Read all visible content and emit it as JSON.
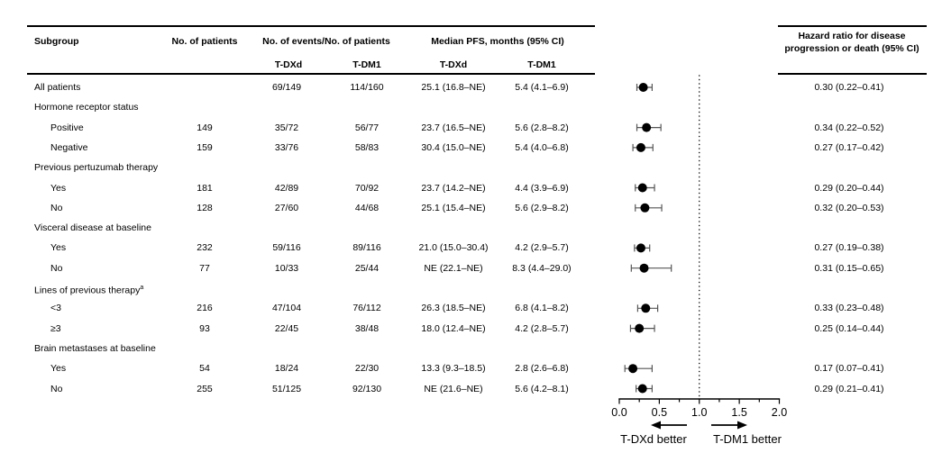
{
  "figure": {
    "headers": {
      "subgroup": "Subgroup",
      "n_patients": "No. of patients",
      "events": "No. of events/No. of patients",
      "pfs": "Median PFS, months (95% CI)",
      "arm1": "T-DXd",
      "arm2": "T-DM1",
      "hazard": "Hazard ratio for disease progression or death (95% CI)"
    }
  },
  "table": {
    "rows": [
      {
        "label": "All patients",
        "indent": 0,
        "n": "",
        "ev_tdxd": "69/149",
        "ev_tdm1": "114/160",
        "pfs_tdxd": "25.1 (16.8–NE)",
        "pfs_tdm1": "5.4 (4.1–6.9)",
        "hr_text": "0.30 (0.22–0.41)",
        "hr": 0.3,
        "lo": 0.22,
        "hi": 0.41
      },
      {
        "label": "Hormone receptor status",
        "indent": 0,
        "group": true
      },
      {
        "label": "Positive",
        "indent": 1,
        "n": "149",
        "ev_tdxd": "35/72",
        "ev_tdm1": "56/77",
        "pfs_tdxd": "23.7 (16.5–NE)",
        "pfs_tdm1": "5.6 (2.8–8.2)",
        "hr_text": "0.34 (0.22–0.52)",
        "hr": 0.34,
        "lo": 0.22,
        "hi": 0.52
      },
      {
        "label": "Negative",
        "indent": 1,
        "n": "159",
        "ev_tdxd": "33/76",
        "ev_tdm1": "58/83",
        "pfs_tdxd": "30.4 (15.0–NE)",
        "pfs_tdm1": "5.4 (4.0–6.8)",
        "hr_text": "0.27 (0.17–0.42)",
        "hr": 0.27,
        "lo": 0.17,
        "hi": 0.42
      },
      {
        "label": "Previous pertuzumab therapy",
        "indent": 0,
        "group": true
      },
      {
        "label": "Yes",
        "indent": 1,
        "n": "181",
        "ev_tdxd": "42/89",
        "ev_tdm1": "70/92",
        "pfs_tdxd": "23.7 (14.2–NE)",
        "pfs_tdm1": "4.4 (3.9–6.9)",
        "hr_text": "0.29 (0.20–0.44)",
        "hr": 0.29,
        "lo": 0.2,
        "hi": 0.44
      },
      {
        "label": "No",
        "indent": 1,
        "n": "128",
        "ev_tdxd": "27/60",
        "ev_tdm1": "44/68",
        "pfs_tdxd": "25.1 (15.4–NE)",
        "pfs_tdm1": "5.6 (2.9–8.2)",
        "hr_text": "0.32 (0.20–0.53)",
        "hr": 0.32,
        "lo": 0.2,
        "hi": 0.53
      },
      {
        "label": "Visceral disease at baseline",
        "indent": 0,
        "group": true
      },
      {
        "label": "Yes",
        "indent": 1,
        "n": "232",
        "ev_tdxd": "59/116",
        "ev_tdm1": "89/116",
        "pfs_tdxd": "21.0 (15.0–30.4)",
        "pfs_tdm1": "4.2 (2.9–5.7)",
        "hr_text": "0.27 (0.19–0.38)",
        "hr": 0.27,
        "lo": 0.19,
        "hi": 0.38
      },
      {
        "label": "No",
        "indent": 1,
        "n": "77",
        "ev_tdxd": "10/33",
        "ev_tdm1": "25/44",
        "pfs_tdxd": "NE (22.1–NE)",
        "pfs_tdm1": "8.3 (4.4–29.0)",
        "hr_text": "0.31 (0.15–0.65)",
        "hr": 0.31,
        "lo": 0.15,
        "hi": 0.65
      },
      {
        "label": "Lines of previous therapy",
        "sup": "a",
        "indent": 0,
        "group": true
      },
      {
        "label": "<3",
        "indent": 1,
        "n": "216",
        "ev_tdxd": "47/104",
        "ev_tdm1": "76/112",
        "pfs_tdxd": "26.3 (18.5–NE)",
        "pfs_tdm1": "6.8 (4.1–8.2)",
        "hr_text": "0.33 (0.23–0.48)",
        "hr": 0.33,
        "lo": 0.23,
        "hi": 0.48
      },
      {
        "label": "≥3",
        "indent": 1,
        "n": "93",
        "ev_tdxd": "22/45",
        "ev_tdm1": "38/48",
        "pfs_tdxd": "18.0 (12.4–NE)",
        "pfs_tdm1": "4.2 (2.8–5.7)",
        "hr_text": "0.25 (0.14–0.44)",
        "hr": 0.25,
        "lo": 0.14,
        "hi": 0.44
      },
      {
        "label": "Brain metastases at baseline",
        "indent": 0,
        "group": true
      },
      {
        "label": "Yes",
        "indent": 1,
        "n": "54",
        "ev_tdxd": "18/24",
        "ev_tdm1": "22/30",
        "pfs_tdxd": "13.3 (9.3–18.5)",
        "pfs_tdm1": "2.8 (2.6–6.8)",
        "hr_text": "0.17 (0.07–0.41)",
        "hr": 0.17,
        "lo": 0.07,
        "hi": 0.41
      },
      {
        "label": "No",
        "indent": 1,
        "n": "255",
        "ev_tdxd": "51/125",
        "ev_tdm1": "92/130",
        "pfs_tdxd": "NE (21.6–NE)",
        "pfs_tdm1": "5.6 (4.2–8.1)",
        "hr_text": "0.29 (0.21–0.41)",
        "hr": 0.29,
        "lo": 0.21,
        "hi": 0.41
      }
    ]
  },
  "chart_data": {
    "type": "forest",
    "title": "",
    "xlabel": "Hazard ratio for disease progression or death (95% CI)",
    "xlim": [
      0.0,
      2.0
    ],
    "tick_labels": [
      "0.0",
      "0.5",
      "1.0",
      "1.5",
      "2.0"
    ],
    "tick_values": [
      0.0,
      0.5,
      1.0,
      1.5,
      2.0
    ],
    "minor_tick_step": 0.25,
    "reference_line": 1.0,
    "direction_labels": {
      "left": "T-DXd better",
      "right": "T-DM1 better"
    },
    "marker_color": "#000000",
    "series": [
      {
        "subgroup": "All patients",
        "hr": 0.3,
        "ci": [
          0.22,
          0.41
        ]
      },
      {
        "subgroup": "Hormone receptor status: Positive",
        "hr": 0.34,
        "ci": [
          0.22,
          0.52
        ]
      },
      {
        "subgroup": "Hormone receptor status: Negative",
        "hr": 0.27,
        "ci": [
          0.17,
          0.42
        ]
      },
      {
        "subgroup": "Previous pertuzumab therapy: Yes",
        "hr": 0.29,
        "ci": [
          0.2,
          0.44
        ]
      },
      {
        "subgroup": "Previous pertuzumab therapy: No",
        "hr": 0.32,
        "ci": [
          0.2,
          0.53
        ]
      },
      {
        "subgroup": "Visceral disease at baseline: Yes",
        "hr": 0.27,
        "ci": [
          0.19,
          0.38
        ]
      },
      {
        "subgroup": "Visceral disease at baseline: No",
        "hr": 0.31,
        "ci": [
          0.15,
          0.65
        ]
      },
      {
        "subgroup": "Lines of previous therapy: <3",
        "hr": 0.33,
        "ci": [
          0.23,
          0.48
        ]
      },
      {
        "subgroup": "Lines of previous therapy: ≥3",
        "hr": 0.25,
        "ci": [
          0.14,
          0.44
        ]
      },
      {
        "subgroup": "Brain metastases at baseline: Yes",
        "hr": 0.17,
        "ci": [
          0.07,
          0.41
        ]
      },
      {
        "subgroup": "Brain metastases at baseline: No",
        "hr": 0.29,
        "ci": [
          0.21,
          0.41
        ]
      }
    ]
  }
}
